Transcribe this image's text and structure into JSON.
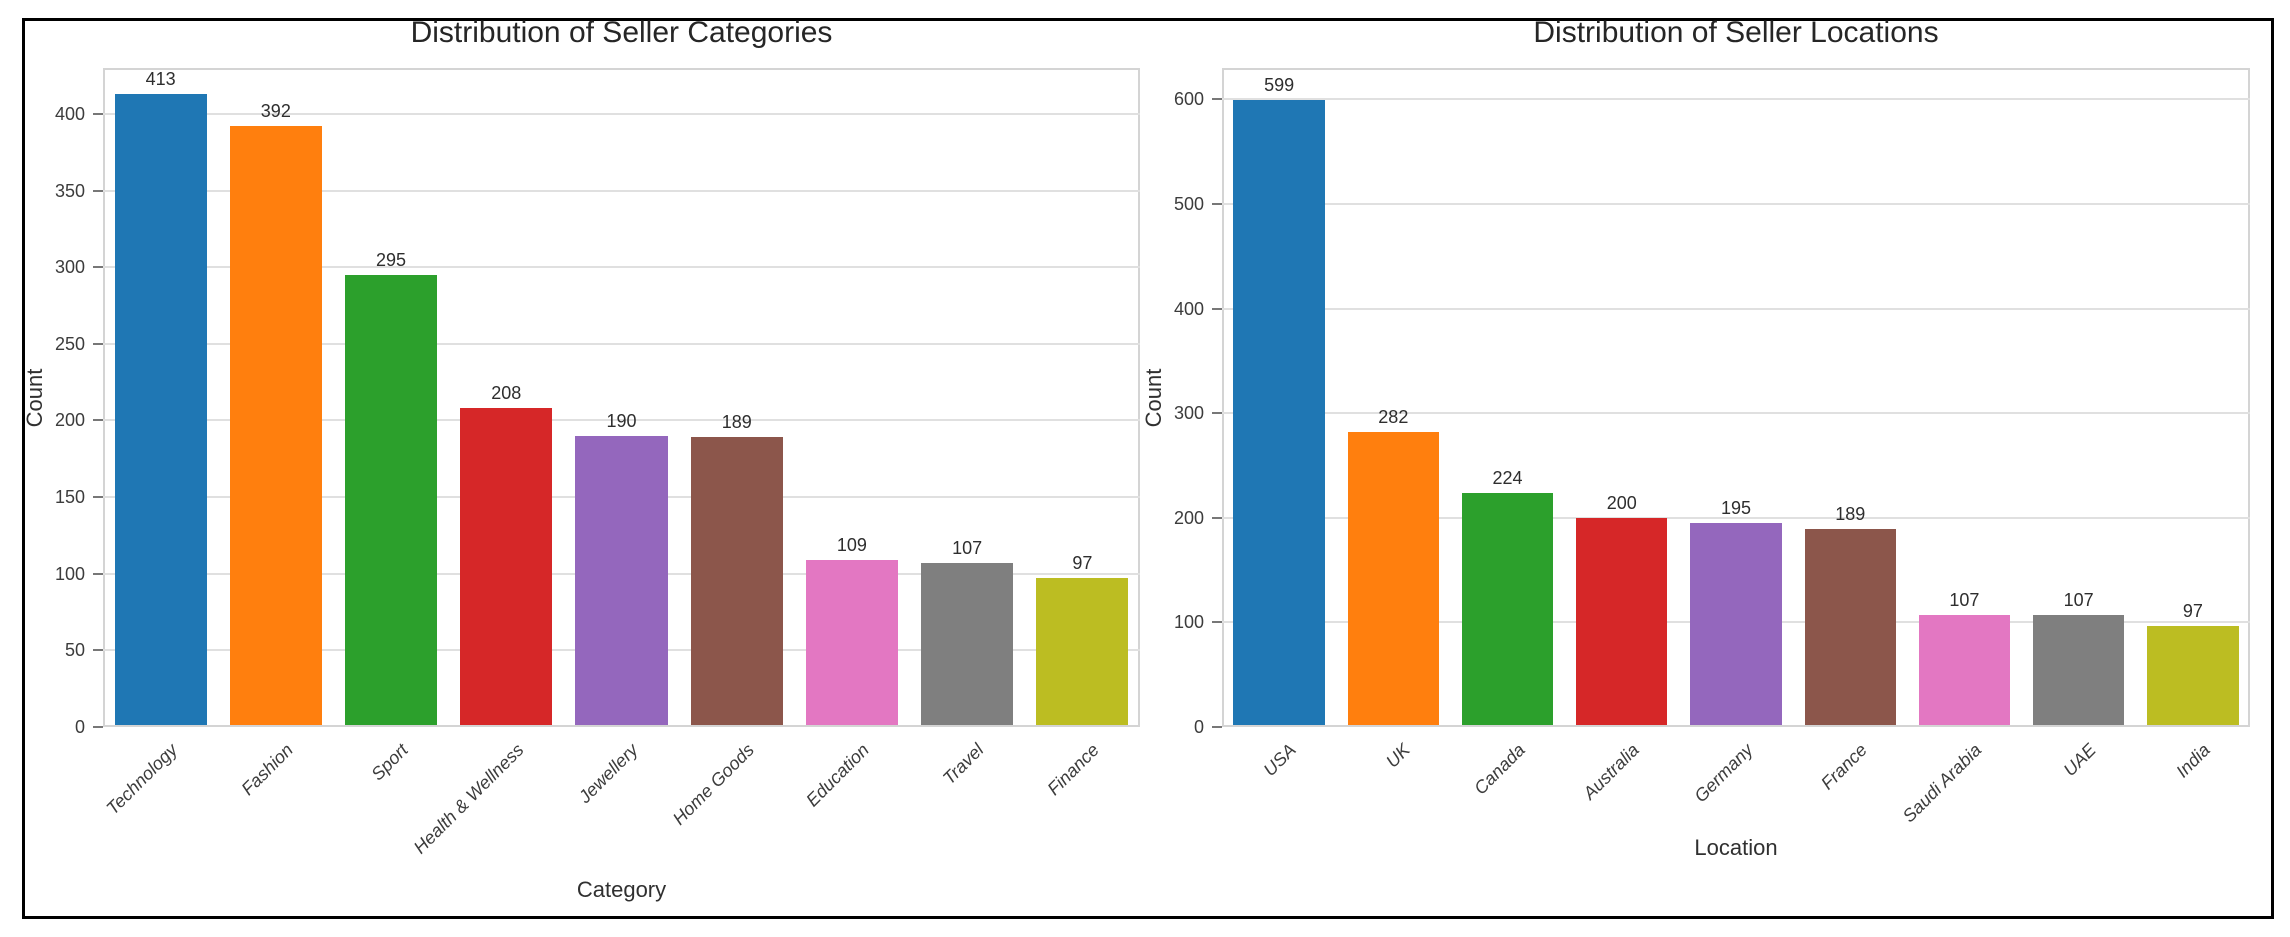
{
  "figure": {
    "background": "#ffffff",
    "border_color": "#000000",
    "grid_color": "#e0e0e0",
    "spine_color": "#d4d4d4",
    "text_color": "#262626"
  },
  "chart_data": [
    {
      "type": "bar",
      "title": "Distribution of Seller Categories",
      "xlabel": "Category",
      "ylabel": "Count",
      "categories": [
        "Technology",
        "Fashion",
        "Sport",
        "Health & Wellness",
        "Jewellery",
        "Home Goods",
        "Education",
        "Travel",
        "Finance"
      ],
      "values": [
        413,
        392,
        295,
        208,
        190,
        189,
        109,
        107,
        97
      ],
      "bar_colors": [
        "#1f77b4",
        "#ff7f0e",
        "#2ca02c",
        "#d62728",
        "#9467bd",
        "#8c564b",
        "#e377c2",
        "#7f7f7f",
        "#bcbd22"
      ],
      "value_labels": [
        "413",
        "392",
        "295",
        "208",
        "190",
        "189",
        "109",
        "107",
        "97"
      ],
      "ylim": [
        0,
        430
      ],
      "yticks": [
        0,
        50,
        100,
        150,
        200,
        250,
        300,
        350,
        400
      ],
      "grid": "horizontal",
      "legend": "none",
      "xtick_style": "italic rotated 45deg"
    },
    {
      "type": "bar",
      "title": "Distribution of Seller Locations",
      "xlabel": "Location",
      "ylabel": "Count",
      "categories": [
        "USA",
        "UK",
        "Canada",
        "Australia",
        "Germany",
        "France",
        "Saudi Arabia",
        "UAE",
        "India"
      ],
      "values": [
        599,
        282,
        224,
        200,
        195,
        189,
        107,
        107,
        97
      ],
      "bar_colors": [
        "#1f77b4",
        "#ff7f0e",
        "#2ca02c",
        "#d62728",
        "#9467bd",
        "#8c564b",
        "#e377c2",
        "#7f7f7f",
        "#bcbd22"
      ],
      "value_labels": [
        "599",
        "282",
        "224",
        "200",
        "195",
        "189",
        "107",
        "107",
        "97"
      ],
      "ylim": [
        0,
        630
      ],
      "yticks": [
        0,
        100,
        200,
        300,
        400,
        500,
        600
      ],
      "grid": "horizontal",
      "legend": "none",
      "xtick_style": "italic rotated 45deg"
    }
  ]
}
